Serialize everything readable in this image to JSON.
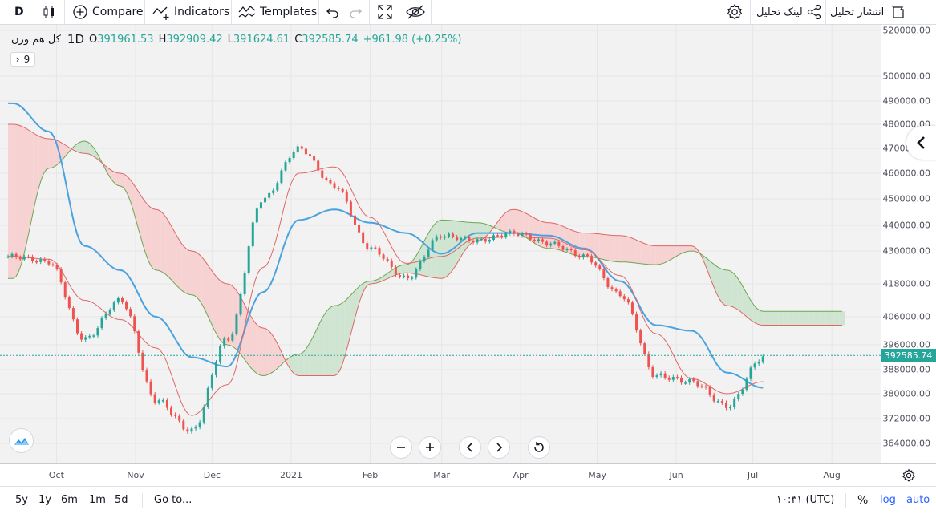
{
  "toolbar": {
    "symbol_label": "D",
    "compare_label": "Compare",
    "indicators_label": "Indicators",
    "templates_label": "Templates",
    "analysis_link_label": "لینک تحلیل",
    "publish_label": "انتشار تحلیل"
  },
  "legend": {
    "symbol": "کل هم وزن",
    "timeframe": "1D",
    "open_key": "O",
    "open": "391961.53",
    "high_key": "H",
    "high": "392909.42",
    "low_key": "L",
    "low": "391624.61",
    "close_key": "C",
    "close": "392585.74",
    "change": "+961.98 (+0.25%)",
    "collapsed_count": "9"
  },
  "price_axis": {
    "ticks": [
      {
        "label": "520000.00",
        "value": 520000
      },
      {
        "label": "500000.00",
        "value": 500000
      },
      {
        "label": "490000.00",
        "value": 490000
      },
      {
        "label": "480000.00",
        "value": 480000
      },
      {
        "label": "470000.00",
        "value": 470000
      },
      {
        "label": "460000.00",
        "value": 460000
      },
      {
        "label": "450000.00",
        "value": 450000
      },
      {
        "label": "440000.00",
        "value": 440000
      },
      {
        "label": "430000.00",
        "value": 430000
      },
      {
        "label": "418000.00",
        "value": 418000
      },
      {
        "label": "406000.00",
        "value": 406000
      },
      {
        "label": "396000.00",
        "value": 396000
      },
      {
        "label": "388000.00",
        "value": 388000
      },
      {
        "label": "380000.00",
        "value": 380000
      },
      {
        "label": "372000.00",
        "value": 372000
      },
      {
        "label": "364000.00",
        "value": 364000
      }
    ],
    "last_price_label": "392585.74"
  },
  "time_axis": {
    "ticks": [
      {
        "label": "Oct"
      },
      {
        "label": "Nov"
      },
      {
        "label": "Dec"
      },
      {
        "label": "2021"
      },
      {
        "label": "Feb"
      },
      {
        "label": "Mar"
      },
      {
        "label": "Apr"
      },
      {
        "label": "May"
      },
      {
        "label": "Jun"
      },
      {
        "label": "Jul"
      },
      {
        "label": "Aug"
      }
    ]
  },
  "bottom_bar": {
    "ranges": [
      "5y",
      "1y",
      "6m",
      "1m",
      "5d"
    ],
    "goto_label": "Go to...",
    "clock": "۱۰:۳۱ (UTC)",
    "percent_label": "%",
    "log_label": "log",
    "auto_label": "auto"
  },
  "colors": {
    "up": "#26a69a",
    "down": "#ef5350",
    "kijun": "#4aa3df",
    "span_bull_fill": "#cfe5d2",
    "span_bear_fill": "#f7d2d2",
    "span_green_line": "#6aa84f",
    "span_red_line": "#e06666"
  },
  "chart_data": {
    "type": "candlestick",
    "title": "کل هم وزن",
    "timeframe": "1D",
    "ylim": [
      360000,
      522000
    ],
    "x_range": [
      "2020-09-12",
      "2021-08-10"
    ],
    "grid": true,
    "last_close": 392585.74,
    "x": [
      "2020-09-14",
      "2020-09-28",
      "2020-10-12",
      "2020-10-26",
      "2020-11-09",
      "2020-11-23",
      "2020-12-07",
      "2020-12-21",
      "2021-01-04",
      "2021-01-18",
      "2021-02-01",
      "2021-02-15",
      "2021-03-01",
      "2021-03-15",
      "2021-03-29",
      "2021-04-12",
      "2021-04-26",
      "2021-05-10",
      "2021-05-24",
      "2021-06-07",
      "2021-06-21",
      "2021-07-05"
    ],
    "series": [
      {
        "name": "close",
        "values": [
          428000,
          426000,
          398000,
          412000,
          378000,
          368000,
          398000,
          450000,
          470000,
          455000,
          431000,
          420000,
          436000,
          434000,
          437000,
          433000,
          428000,
          414000,
          386000,
          384000,
          376000,
          392000
        ]
      },
      {
        "name": "kijun",
        "values": [
          489000,
          477000,
          432000,
          423000,
          406000,
          392000,
          389000,
          415000,
          442000,
          446000,
          441000,
          437000,
          429000,
          437000,
          437000,
          436000,
          431000,
          419000,
          403000,
          401000,
          387000,
          382000
        ]
      },
      {
        "name": "span_a",
        "values": [
          420000,
          462000,
          473000,
          455000,
          423000,
          414000,
          396000,
          386000,
          393000,
          410000,
          419000,
          425000,
          442000,
          441000,
          437000,
          431000,
          428000,
          426000,
          425000,
          430000,
          423000,
          408000
        ]
      },
      {
        "name": "span_b",
        "values": [
          480000,
          474000,
          468000,
          460000,
          446000,
          430000,
          418000,
          402000,
          386000,
          386000,
          418000,
          422000,
          420000,
          434000,
          446000,
          441000,
          437000,
          436000,
          432000,
          432000,
          410000,
          403000
        ]
      }
    ]
  }
}
